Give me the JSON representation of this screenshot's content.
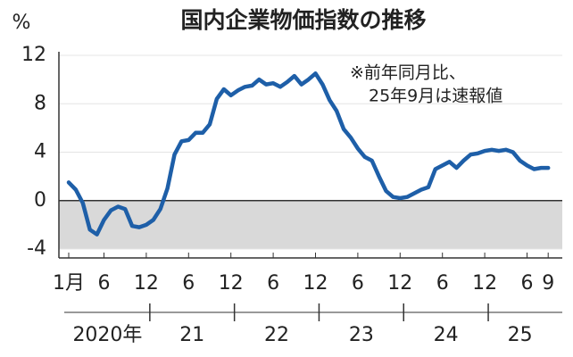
{
  "chart_data": {
    "type": "line",
    "title": "国内企業物価指数の推移",
    "y_unit": "%",
    "annotation": [
      "※前年同月比、",
      "25年9月は速報値"
    ],
    "categories": [
      "1月",
      null,
      null,
      null,
      null,
      "6",
      null,
      null,
      null,
      null,
      null,
      "12",
      null,
      null,
      null,
      null,
      null,
      "6",
      null,
      null,
      null,
      null,
      null,
      "12",
      null,
      null,
      null,
      null,
      null,
      "6",
      null,
      null,
      null,
      null,
      null,
      "12",
      null,
      null,
      null,
      null,
      null,
      "6",
      null,
      null,
      null,
      null,
      null,
      "12",
      null,
      null,
      null,
      null,
      null,
      "6",
      null,
      null,
      null,
      null,
      null,
      "12",
      null,
      null,
      null,
      null,
      null,
      "6",
      null,
      null,
      "9"
    ],
    "year_labels": [
      "2020年",
      "21",
      "22",
      "23",
      "24",
      "25"
    ],
    "series": [
      {
        "name": "国内企業物価指数",
        "color": "#1e5fa8",
        "values": [
          1.5,
          0.9,
          -0.2,
          -2.4,
          -2.8,
          -1.6,
          -0.8,
          -0.5,
          -0.7,
          -2.1,
          -2.2,
          -2.0,
          -1.6,
          -0.7,
          1.0,
          3.8,
          4.9,
          5.0,
          5.6,
          5.6,
          6.3,
          8.4,
          9.2,
          8.7,
          9.1,
          9.4,
          9.5,
          10.0,
          9.6,
          9.7,
          9.4,
          9.8,
          10.3,
          9.6,
          10.0,
          10.5,
          9.6,
          8.3,
          7.4,
          5.9,
          5.2,
          4.3,
          3.6,
          3.3,
          2.0,
          0.8,
          0.3,
          0.2,
          0.3,
          0.6,
          0.9,
          1.1,
          2.6,
          2.9,
          3.2,
          2.7,
          3.3,
          3.8,
          3.9,
          4.1,
          4.2,
          4.1,
          4.2,
          4.0,
          3.3,
          2.9,
          2.6,
          2.7,
          2.7
        ]
      }
    ],
    "ylim": [
      -4,
      12
    ],
    "yticks": [
      -4,
      0,
      4,
      8,
      12
    ],
    "negative_shade_color": "#d9d9d9",
    "grid": true
  }
}
